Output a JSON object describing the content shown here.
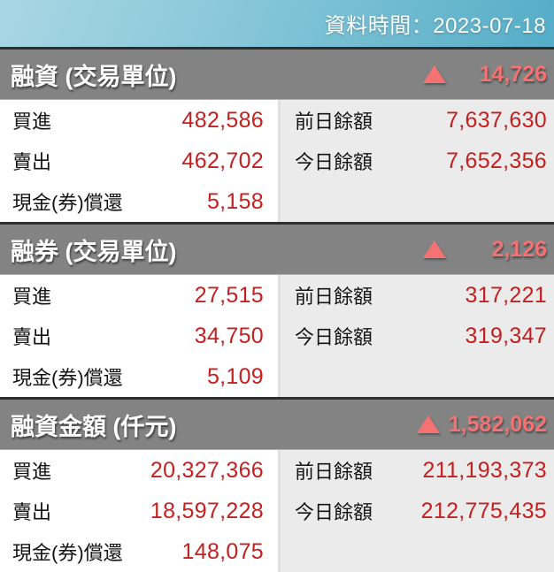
{
  "topbar": {
    "time_label": "資料時間：2023-07-18"
  },
  "colors": {
    "topbar_teal_start": "#a9d7e4",
    "topbar_teal_end": "#55adc7",
    "section_header_gray": "#838383",
    "change_salmon": "#f47272",
    "value_red": "#c32020",
    "right_panel_gray": "#ebebeb",
    "dark_divider": "#2e2e2e"
  },
  "sections": [
    {
      "title": "融資 (交易單位)",
      "change_icon": "up-triangle-icon",
      "change": "14,726",
      "left_rows": [
        {
          "label": "買進",
          "value": "482,586"
        },
        {
          "label": "賣出",
          "value": "462,702"
        },
        {
          "label": "現金(券)償還",
          "value": "5,158"
        }
      ],
      "right_rows": [
        {
          "label": "前日餘額",
          "value": "7,637,630"
        },
        {
          "label": "今日餘額",
          "value": "7,652,356"
        }
      ]
    },
    {
      "title": "融券 (交易單位)",
      "change_icon": "up-triangle-icon",
      "change": "2,126",
      "left_rows": [
        {
          "label": "買進",
          "value": "27,515"
        },
        {
          "label": "賣出",
          "value": "34,750"
        },
        {
          "label": "現金(券)償還",
          "value": "5,109"
        }
      ],
      "right_rows": [
        {
          "label": "前日餘額",
          "value": "317,221"
        },
        {
          "label": "今日餘額",
          "value": "319,347"
        }
      ]
    },
    {
      "title": "融資金額 (仟元)",
      "change_icon": "up-triangle-icon",
      "change": "1,582,062",
      "left_rows": [
        {
          "label": "買進",
          "value": "20,327,366"
        },
        {
          "label": "賣出",
          "value": "18,597,228"
        },
        {
          "label": "現金(券)償還",
          "value": "148,075"
        }
      ],
      "right_rows": [
        {
          "label": "前日餘額",
          "value": "211,193,373"
        },
        {
          "label": "今日餘額",
          "value": "212,775,435"
        }
      ]
    }
  ]
}
